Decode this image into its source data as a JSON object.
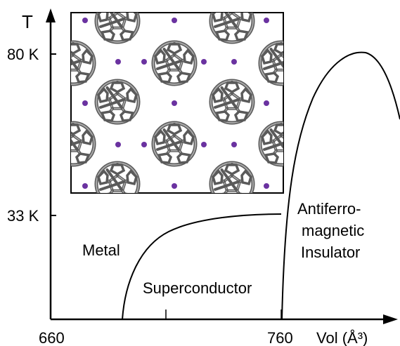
{
  "axes": {
    "y_label": "T",
    "y_tick_80": "80 K",
    "y_tick_33": "33 K",
    "x_tick_660": "660",
    "x_tick_760": "760",
    "x_label": "Vol (Å³)"
  },
  "regions": {
    "metal": "Metal",
    "superconductor": "Superconductor",
    "afm_line1": "Antiferro-",
    "afm_line2": "magnetic",
    "afm_line3": "Insulator"
  },
  "colors": {
    "axis": "#000000",
    "curve": "#000000",
    "cage_stroke": "#5a5a5a",
    "cage_fill": "#9a9a9a",
    "atom": "#6a32a0",
    "inset_border": "#000000"
  }
}
